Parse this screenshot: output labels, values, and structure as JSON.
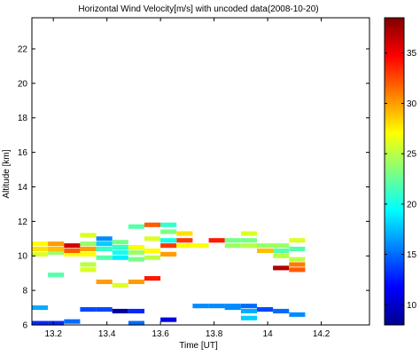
{
  "chart_data": {
    "type": "heatmap",
    "title": "Horizontal Wind Velocity[m/s] with uncoded data(2008-10-20)",
    "xlabel": "Time [UT]",
    "ylabel": "Altitude [km]",
    "xlim": [
      13.12,
      14.38
    ],
    "ylim": [
      6,
      23.8
    ],
    "x_ticks": [
      13.2,
      13.4,
      13.6,
      13.8,
      14,
      14.2
    ],
    "x_tick_labels": [
      "13.2",
      "13.4",
      "13.6",
      "13.8",
      "14",
      "14.2"
    ],
    "y_ticks": [
      6,
      8,
      10,
      12,
      14,
      16,
      18,
      20,
      22
    ],
    "y_tick_labels": [
      "6",
      "8",
      "10",
      "12",
      "14",
      "16",
      "18",
      "20",
      "22"
    ],
    "colorbar": {
      "colormap": "jet",
      "clim": [
        8,
        38.5
      ],
      "ticks": [
        10,
        15,
        20,
        25,
        30,
        35
      ],
      "tick_labels": [
        "10",
        "15",
        "20",
        "25",
        "30",
        "35"
      ]
    },
    "grid": false,
    "columns": [
      {
        "t0": 13.12,
        "t1": 13.18,
        "cells": [
          [
            6.1,
            13
          ],
          [
            7.0,
            17
          ],
          [
            10.1,
            26
          ],
          [
            10.4,
            28
          ],
          [
            10.7,
            27
          ]
        ]
      },
      {
        "t0": 13.18,
        "t1": 13.24,
        "cells": [
          [
            6.1,
            13
          ],
          [
            8.9,
            22
          ],
          [
            10.2,
            24
          ],
          [
            10.4,
            29
          ],
          [
            10.7,
            30
          ]
        ]
      },
      {
        "t0": 13.24,
        "t1": 13.3,
        "cells": [
          [
            6.2,
            15
          ],
          [
            10.1,
            27
          ],
          [
            10.3,
            32
          ],
          [
            10.6,
            36
          ]
        ]
      },
      {
        "t0": 13.3,
        "t1": 13.36,
        "cells": [
          [
            6.9,
            14
          ],
          [
            9.2,
            26
          ],
          [
            9.5,
            25
          ],
          [
            10.1,
            27
          ],
          [
            10.4,
            30
          ],
          [
            10.7,
            24
          ],
          [
            11.2,
            26
          ]
        ]
      },
      {
        "t0": 13.36,
        "t1": 13.42,
        "cells": [
          [
            6.9,
            14
          ],
          [
            8.5,
            30
          ],
          [
            9.9,
            22
          ],
          [
            10.4,
            21
          ],
          [
            10.7,
            18
          ],
          [
            11.0,
            16
          ]
        ]
      },
      {
        "t0": 13.42,
        "t1": 13.48,
        "cells": [
          [
            6.8,
            9
          ],
          [
            8.3,
            26
          ],
          [
            9.9,
            19
          ],
          [
            10.2,
            20
          ],
          [
            10.5,
            21
          ],
          [
            10.8,
            23
          ]
        ]
      },
      {
        "t0": 13.48,
        "t1": 13.54,
        "cells": [
          [
            6.1,
            15
          ],
          [
            6.8,
            13
          ],
          [
            8.5,
            30
          ],
          [
            9.8,
            23
          ],
          [
            10.2,
            24
          ],
          [
            10.5,
            27
          ],
          [
            11.7,
            22
          ]
        ]
      },
      {
        "t0": 13.54,
        "t1": 13.6,
        "cells": [
          [
            8.7,
            34
          ],
          [
            9.9,
            25
          ],
          [
            10.3,
            27
          ],
          [
            11.0,
            26
          ],
          [
            11.8,
            32
          ]
        ]
      },
      {
        "t0": 13.6,
        "t1": 13.66,
        "cells": [
          [
            6.3,
            11
          ],
          [
            10.1,
            30
          ],
          [
            10.6,
            33
          ],
          [
            10.9,
            20
          ],
          [
            11.4,
            23
          ],
          [
            11.8,
            21
          ]
        ]
      },
      {
        "t0": 13.66,
        "t1": 13.72,
        "cells": [
          [
            10.6,
            27
          ],
          [
            10.9,
            33
          ],
          [
            11.3,
            28
          ]
        ]
      },
      {
        "t0": 13.72,
        "t1": 13.78,
        "cells": [
          [
            7.1,
            16
          ],
          [
            10.6,
            27
          ]
        ]
      },
      {
        "t0": 13.78,
        "t1": 13.84,
        "cells": [
          [
            7.1,
            16
          ],
          [
            10.9,
            34
          ]
        ]
      },
      {
        "t0": 13.84,
        "t1": 13.9,
        "cells": [
          [
            7.0,
            16
          ],
          [
            7.1,
            16
          ],
          [
            10.6,
            24
          ],
          [
            10.9,
            23
          ]
        ]
      },
      {
        "t0": 13.9,
        "t1": 13.96,
        "cells": [
          [
            6.4,
            18
          ],
          [
            6.8,
            17
          ],
          [
            7.1,
            15
          ],
          [
            10.6,
            25
          ],
          [
            10.9,
            23
          ],
          [
            11.3,
            26
          ]
        ]
      },
      {
        "t0": 13.96,
        "t1": 14.02,
        "cells": [
          [
            6.9,
            14
          ],
          [
            10.3,
            29
          ],
          [
            10.6,
            24
          ]
        ]
      },
      {
        "t0": 14.02,
        "t1": 14.08,
        "cells": [
          [
            6.8,
            15
          ],
          [
            9.3,
            37
          ],
          [
            10.0,
            25
          ],
          [
            10.3,
            22
          ],
          [
            10.6,
            24
          ]
        ]
      },
      {
        "t0": 14.08,
        "t1": 14.14,
        "cells": [
          [
            6.6,
            16
          ],
          [
            9.2,
            32
          ],
          [
            9.5,
            31
          ],
          [
            9.8,
            25
          ],
          [
            10.4,
            22
          ],
          [
            10.9,
            26
          ]
        ]
      }
    ]
  }
}
